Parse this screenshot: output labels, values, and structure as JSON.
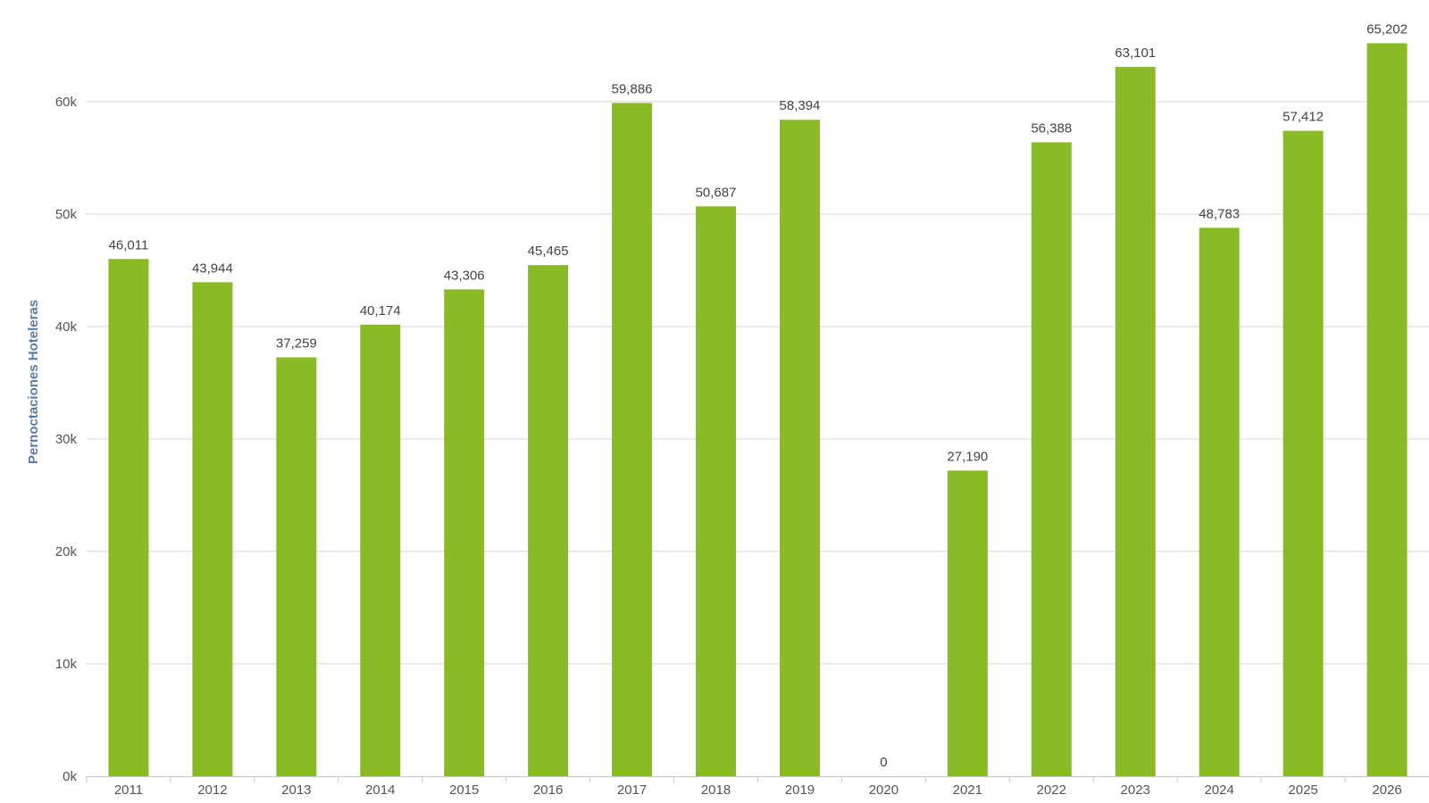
{
  "chart_data": {
    "type": "bar",
    "categories": [
      "2011",
      "2012",
      "2013",
      "2014",
      "2015",
      "2016",
      "2017",
      "2018",
      "2019",
      "2020",
      "2021",
      "2022",
      "2023",
      "2024",
      "2025",
      "2026"
    ],
    "values": [
      46011,
      43944,
      37259,
      40174,
      43306,
      45465,
      59886,
      50687,
      58394,
      0,
      27190,
      56388,
      63101,
      48783,
      57412,
      65202
    ],
    "data_labels": [
      "46,011",
      "43,944",
      "37,259",
      "40,174",
      "43,306",
      "45,465",
      "59,886",
      "50,687",
      "58,394",
      "0",
      "27,190",
      "56,388",
      "63,101",
      "48,783",
      "57,412",
      "65,202"
    ],
    "ylabel": "Pernoctaciones Hoteleras",
    "xlabel": "",
    "ylim": [
      0,
      60000
    ],
    "y_ticks": [
      0,
      10000,
      20000,
      30000,
      40000,
      50000,
      60000
    ],
    "y_tick_labels": [
      "0k",
      "10k",
      "20k",
      "30k",
      "40k",
      "50k",
      "60k"
    ],
    "grid": true,
    "bar_color": "#8aba25",
    "grid_color": "#d6d6d6"
  }
}
